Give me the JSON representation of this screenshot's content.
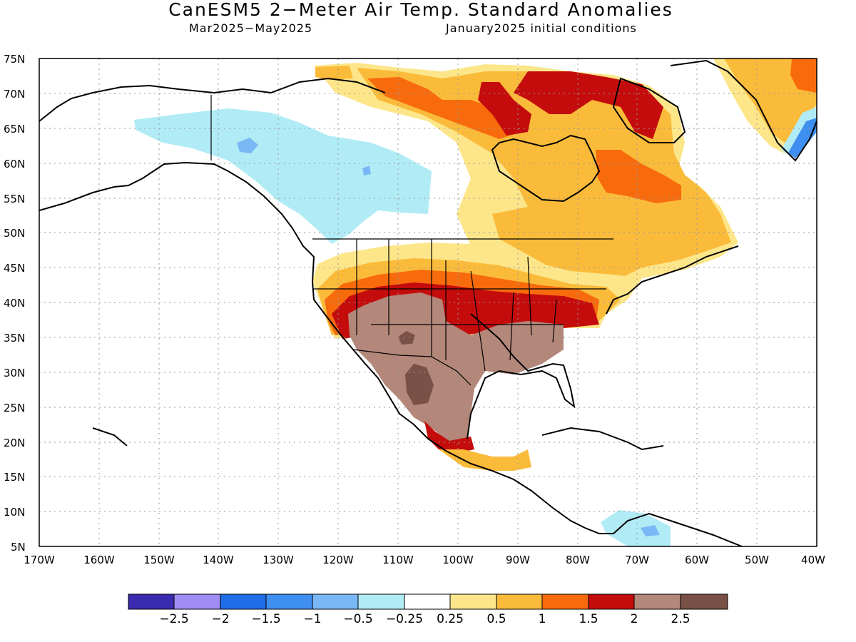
{
  "title": "CanESM5 2−Meter Air Temp. Standard Anomalies",
  "subtitle_left": "Mar2025−May2025",
  "subtitle_right": "January2025 initial conditions",
  "lat_labels": [
    "75N",
    "70N",
    "65N",
    "60N",
    "55N",
    "50N",
    "45N",
    "40N",
    "35N",
    "30N",
    "25N",
    "20N",
    "15N",
    "10N",
    "5N"
  ],
  "lon_labels": [
    "170W",
    "160W",
    "150W",
    "140W",
    "130W",
    "120W",
    "110W",
    "100W",
    "90W",
    "80W",
    "70W",
    "60W",
    "50W",
    "40W"
  ],
  "colorbar": {
    "colors": [
      "#3a2bb0",
      "#9f8cf5",
      "#1f6ee8",
      "#3f8ff0",
      "#7ab8f5",
      "#b1ecf6",
      "#ffffff",
      "#fde68a",
      "#fbbb3a",
      "#f76b0d",
      "#c40c0c",
      "#b3877a",
      "#7a5146"
    ],
    "labels": [
      "−2.5",
      "−2",
      "−1.5",
      "−1",
      "−0.5",
      "−0.25",
      "0.25",
      "0.5",
      "1",
      "1.5",
      "2",
      "2.5"
    ]
  }
}
